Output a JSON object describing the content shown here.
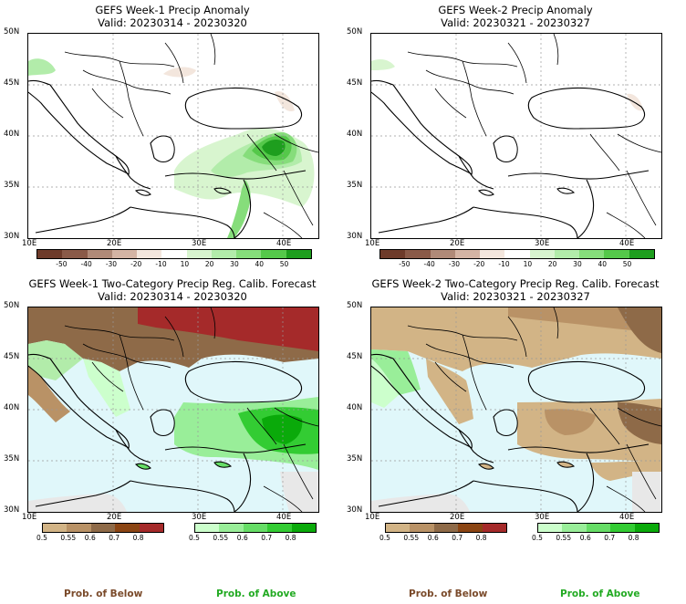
{
  "panels": [
    {
      "title": "GEFS Week-1 Precip Anomaly",
      "valid": "Valid: 20230314 - 20230320"
    },
    {
      "title": "GEFS Week-2 Precip Anomaly",
      "valid": "Valid: 20230321 - 20230327"
    },
    {
      "title": "GEFS Week-1 Two-Category Precip Reg. Calib. Forecast",
      "valid": "Valid: 20230314 - 20230320"
    },
    {
      "title": "GEFS Week-2 Two-Category Precip Reg. Calib. Forecast",
      "valid": "Valid: 20230321 - 20230327"
    }
  ],
  "axes": {
    "lat_labels": [
      "50N",
      "45N",
      "40N",
      "35N",
      "30N"
    ],
    "lon_labels": [
      "10E",
      "20E",
      "30E",
      "40E"
    ]
  },
  "anomaly_colorbar": {
    "labels": [
      "-50",
      "-40",
      "-30",
      "-20",
      "-10",
      "10",
      "20",
      "30",
      "40",
      "50"
    ],
    "colors": [
      "#6e3b2a",
      "#8a5a48",
      "#b08a78",
      "#d4b4a4",
      "#f3e6dd",
      "#ffffff",
      "#d8f5cf",
      "#b2ecaa",
      "#86dd7b",
      "#55c84a",
      "#1e9e1e"
    ]
  },
  "prob_colorbar": {
    "below_labels": [
      "0.5",
      "0.55",
      "0.6",
      "0.7",
      "0.8"
    ],
    "below_colors": [
      "#d2b486",
      "#b99266",
      "#8e6a48",
      "#8b4513",
      "#a52a2a"
    ],
    "above_labels": [
      "0.5",
      "0.55",
      "0.6",
      "0.7",
      "0.8"
    ],
    "above_colors": [
      "#ccffcc",
      "#99ee99",
      "#66dd66",
      "#33cc33",
      "#0aaa0a"
    ]
  },
  "footer": {
    "below_label": "Prob. of Below",
    "above_label": "Prob. of Above",
    "below_color": "#7a4a2a",
    "above_color": "#22aa22"
  }
}
